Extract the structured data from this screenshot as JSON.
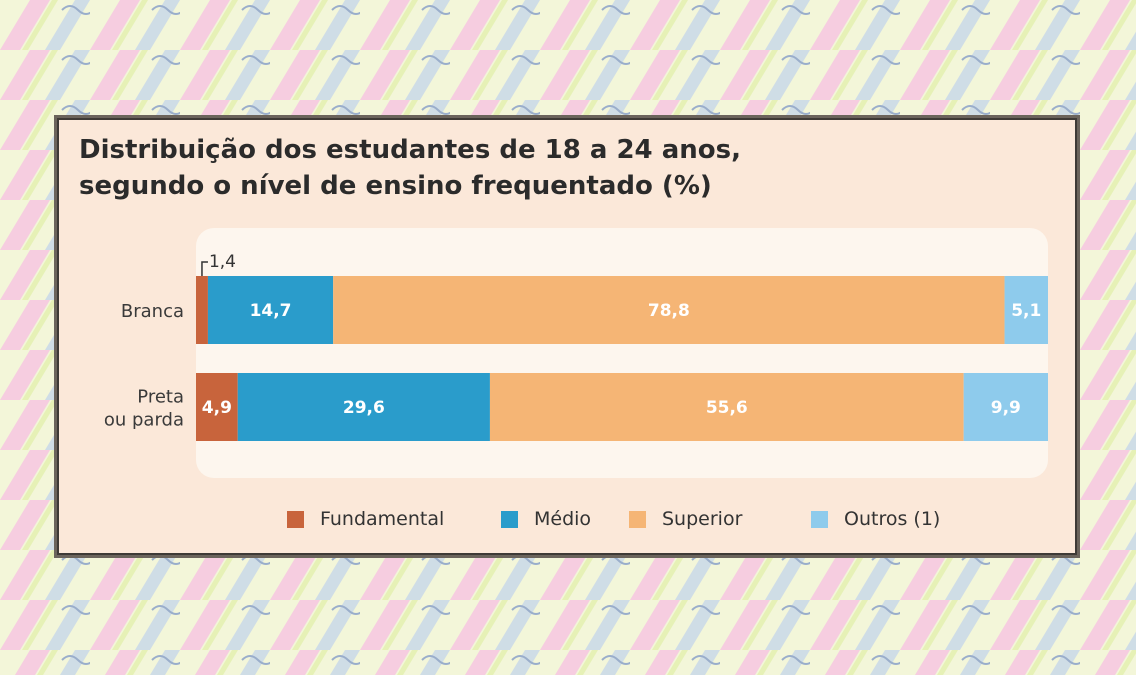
{
  "chart_data": {
    "type": "bar",
    "orientation": "horizontal",
    "stacked": true,
    "title": "Distribuição dos estudantes de 18 a 24 anos,",
    "subtitle": "segundo o nível de ensino frequentado (%)",
    "categories": [
      [
        "Branca"
      ],
      [
        "Preta",
        "ou parda"
      ]
    ],
    "series": [
      {
        "name": "Fundamental",
        "color": "#c8643c",
        "values": [
          1.4,
          4.9
        ]
      },
      {
        "name": "Médio",
        "color": "#2a9ccb",
        "values": [
          14.7,
          29.6
        ]
      },
      {
        "name": "Superior",
        "color": "#f5b575",
        "values": [
          78.8,
          55.6
        ]
      },
      {
        "name": "Outros (1)",
        "color": "#8ecbec",
        "values": [
          5.1,
          9.9
        ]
      }
    ],
    "xlim": [
      0,
      100
    ],
    "grid": false,
    "legend": "bottom",
    "annotations": [
      {
        "text": "1,4",
        "series": "Fundamental",
        "category": "Branca",
        "placement": "above"
      }
    ]
  }
}
